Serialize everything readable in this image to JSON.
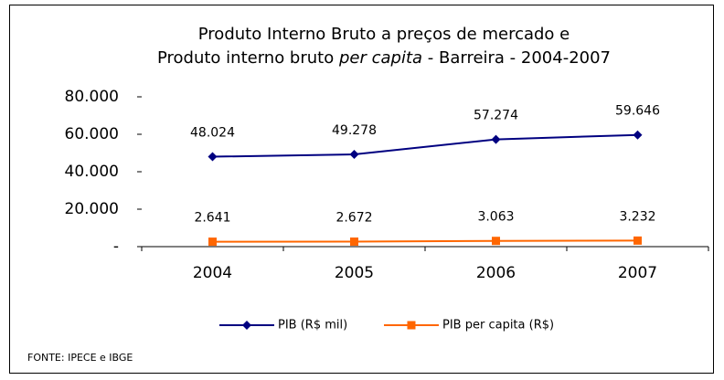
{
  "chart_data": {
    "type": "line",
    "title": [
      [
        "Produto Interno Bruto a preços de mercado  e"
      ],
      [
        "Produto interno bruto ",
        "per capita",
        " - Barreira - 2004-2007"
      ]
    ],
    "categories": [
      "2004",
      "2005",
      "2006",
      "2007"
    ],
    "series": [
      {
        "name": "PIB (R$ mil)",
        "color": "#000080",
        "marker": "diamond",
        "values": [
          48024,
          49278,
          57274,
          59646
        ],
        "value_labels": [
          "48.024",
          "49.278",
          "57.274",
          "59.646"
        ]
      },
      {
        "name": "PIB per capita (R$)",
        "color": "#ff6600",
        "marker": "square",
        "values": [
          2641,
          2672,
          3063,
          3232
        ],
        "value_labels": [
          "2.641",
          "2.672",
          "3.063",
          "3.232"
        ]
      }
    ],
    "ylim": [
      0,
      80000
    ],
    "yticks": [
      {
        "value": 0,
        "label": "-"
      },
      {
        "value": 20000,
        "label": "20.000"
      },
      {
        "value": 40000,
        "label": "40.000"
      },
      {
        "value": 60000,
        "label": "60.000"
      },
      {
        "value": 80000,
        "label": "80.000"
      }
    ],
    "grid": false,
    "legend": "bottom",
    "source": "FONTE: IPECE e IBGE"
  }
}
